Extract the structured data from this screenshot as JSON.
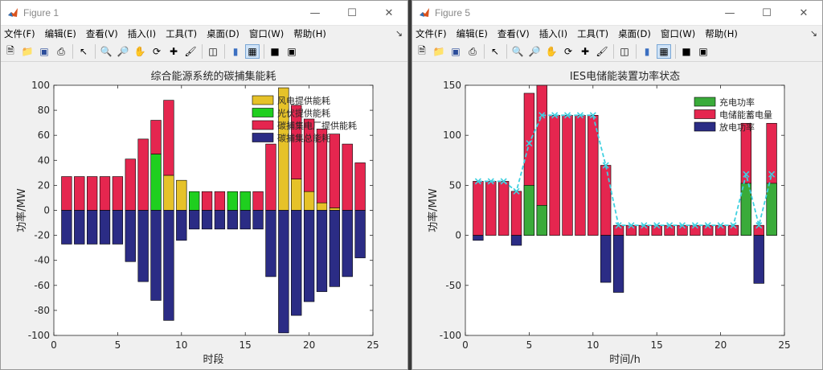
{
  "menu": [
    "文件(F)",
    "编辑(E)",
    "查看(V)",
    "插入(I)",
    "工具(T)",
    "桌面(D)",
    "窗口(W)",
    "帮助(H)"
  ],
  "toolbar_icons": [
    "new-file-icon",
    "open-folder-icon",
    "save-icon",
    "print-icon",
    "pointer-icon",
    "zoom-in-icon",
    "zoom-out-icon",
    "pan-icon",
    "rotate-icon",
    "data-cursor-icon",
    "brush-icon",
    "link-icon",
    "colorbar-icon",
    "legend-icon",
    "hide-plot-tools-icon",
    "show-plot-tools-icon"
  ],
  "windows": [
    {
      "title": "Figure 1"
    },
    {
      "title": "Figure 5"
    }
  ],
  "colors": {
    "wind": "#e6c229",
    "solar": "#1fcf1f",
    "red": "#e5264f",
    "navy": "#2b2c85",
    "charge": "#3aab3a",
    "line": "#3fd0e0"
  },
  "chart_data": [
    {
      "type": "bar",
      "stacked": true,
      "title": "综合能源系统的碳捕集能耗",
      "xlabel": "时段",
      "ylabel": "功率/MW",
      "xlim": [
        0,
        25
      ],
      "ylim": [
        -100,
        100
      ],
      "xticks": [
        0,
        5,
        10,
        15,
        20,
        25
      ],
      "yticks": [
        -100,
        -80,
        -60,
        -40,
        -20,
        0,
        20,
        40,
        60,
        80,
        100
      ],
      "legend_position": "top-right",
      "x": [
        1,
        2,
        3,
        4,
        5,
        6,
        7,
        8,
        9,
        10,
        11,
        12,
        13,
        14,
        15,
        16,
        17,
        18,
        19,
        20,
        21,
        22,
        23,
        24
      ],
      "series": [
        {
          "name": "风电提供能耗",
          "color_key": "wind",
          "values": [
            0,
            0,
            0,
            0,
            0,
            0,
            0,
            0,
            28,
            24,
            0,
            0,
            0,
            0,
            0,
            0,
            0,
            98,
            25,
            15,
            6,
            2,
            0,
            0
          ]
        },
        {
          "name": "光伏提供能耗",
          "color_key": "solar",
          "values": [
            0,
            0,
            0,
            0,
            0,
            0,
            0,
            45,
            0,
            0,
            15,
            0,
            0,
            15,
            15,
            0,
            0,
            0,
            0,
            0,
            0,
            0,
            0,
            0
          ]
        },
        {
          "name": "碳捕集电厂提供能耗",
          "color_key": "red",
          "values": [
            27,
            27,
            27,
            27,
            27,
            41,
            57,
            27,
            60,
            0,
            0,
            15,
            15,
            0,
            0,
            15,
            53,
            0,
            59,
            58,
            59,
            59,
            53,
            38
          ]
        },
        {
          "name": "碳捕集总能耗",
          "color_key": "navy",
          "values": [
            -27,
            -27,
            -27,
            -27,
            -27,
            -41,
            -57,
            -72,
            -88,
            -24,
            -15,
            -15,
            -15,
            -15,
            -15,
            -15,
            -53,
            -98,
            -84,
            -73,
            -65,
            -61,
            -53,
            -38
          ]
        }
      ]
    },
    {
      "type": "bar",
      "stacked": false,
      "title": "IES电储能装置功率状态",
      "xlabel": "时间/h",
      "ylabel": "功率/MW",
      "xlim": [
        0,
        25
      ],
      "ylim": [
        -100,
        150
      ],
      "xticks": [
        0,
        5,
        10,
        15,
        20,
        25
      ],
      "yticks": [
        -100,
        -50,
        0,
        50,
        100,
        150
      ],
      "legend_position": "top-right",
      "x": [
        1,
        2,
        3,
        4,
        5,
        6,
        7,
        8,
        9,
        10,
        11,
        12,
        13,
        14,
        15,
        16,
        17,
        18,
        19,
        20,
        21,
        22,
        23,
        24
      ],
      "series": [
        {
          "name": "电储能蓄电量",
          "color_key": "red",
          "values": [
            54,
            54,
            54,
            44,
            142,
            150,
            120,
            120,
            120,
            120,
            70,
            10,
            10,
            10,
            10,
            10,
            10,
            10,
            10,
            10,
            10,
            112,
            10,
            112
          ]
        },
        {
          "name": "充电功率",
          "color_key": "charge",
          "values": [
            0,
            0,
            0,
            0,
            50,
            30,
            0,
            0,
            0,
            0,
            0,
            0,
            0,
            0,
            0,
            0,
            0,
            0,
            0,
            0,
            0,
            52,
            0,
            52
          ]
        },
        {
          "name": "放电功率",
          "color_key": "navy",
          "values": [
            -5,
            0,
            0,
            -10,
            0,
            0,
            0,
            0,
            0,
            0,
            -47,
            -57,
            0,
            0,
            0,
            0,
            0,
            0,
            0,
            0,
            0,
            0,
            -48,
            0
          ]
        }
      ],
      "line": {
        "color_key": "line",
        "values": [
          54,
          54,
          54,
          44,
          92,
          120,
          120,
          120,
          120,
          120,
          70,
          10,
          10,
          10,
          10,
          10,
          10,
          10,
          10,
          10,
          10,
          61,
          10,
          61
        ]
      },
      "legend_order": [
        "充电功率",
        "电储能蓄电量",
        "放电功率"
      ]
    }
  ]
}
